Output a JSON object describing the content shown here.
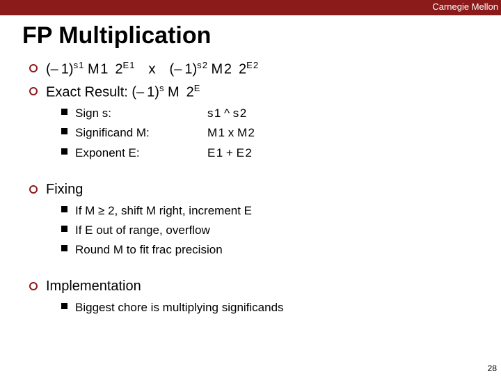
{
  "colors": {
    "brand": "#8b1a1a",
    "background": "#ffffff",
    "text": "#000000"
  },
  "header": {
    "brand": "Carnegie Mellon"
  },
  "title": "FP Multiplication",
  "line1": {
    "pre1": "(– 1)",
    "s1": "s 1",
    "m1": " M 1 ",
    "two1": "2",
    "e1": "E 1",
    "x": " x ",
    "pre2": "(– 1)",
    "s2": "s 2",
    "m2": " M 2 ",
    "two2": "2",
    "e2": "E 2"
  },
  "line2": {
    "pre": "Exact Result: (– 1)",
    "s": "s",
    "m": " M ",
    "two": "2",
    "e": "E"
  },
  "exact": {
    "sign": {
      "label": "Sign s:",
      "value": "s 1 ^ s 2"
    },
    "signif": {
      "label": "Significand M:",
      "value": "M 1 x  M 2"
    },
    "exp": {
      "label": "Exponent E:",
      "value": "E 1 + E 2"
    }
  },
  "fixing": {
    "title": "Fixing",
    "b1": "If M ≥ 2, shift M right, increment E",
    "b2": "If E out of range, overflow",
    "b3": "Round M to fit frac precision"
  },
  "impl": {
    "title": "Implementation",
    "b1": "Biggest chore is multiplying significands"
  },
  "page": "28"
}
